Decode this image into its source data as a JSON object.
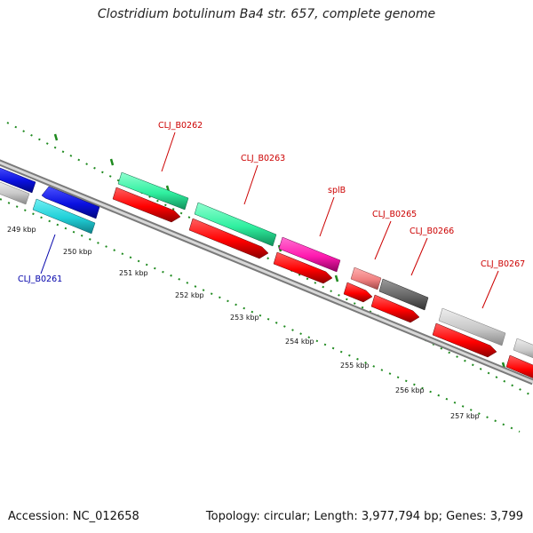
{
  "header": {
    "title": "Clostridium botulinum Ba4 str. 657, complete genome"
  },
  "footer": {
    "accession": "Accession: NC_012658",
    "stats": "Topology: circular; Length: 3,977,794 bp; Genes: 3,799"
  },
  "scale": {
    "ticks": [
      "249 kbp",
      "250 kbp",
      "251 kbp",
      "252 kbp",
      "253 kbp",
      "254 kbp",
      "255 kbp",
      "256 kbp",
      "257 kbp"
    ]
  },
  "genes": [
    {
      "name": "CLJ_B0261",
      "color": "#000080"
    },
    {
      "name": "CLJ_B0262",
      "color": "#cc0000"
    },
    {
      "name": "CLJ_B0263",
      "color": "#cc0000"
    },
    {
      "name": "splB",
      "color": "#cc0000"
    },
    {
      "name": "CLJ_B0265",
      "color": "#cc0000"
    },
    {
      "name": "CLJ_B0266",
      "color": "#cc0000"
    },
    {
      "name": "CLJ_B0267",
      "color": "#cc0000"
    }
  ],
  "colors": {
    "backbone": "#7a7a7a",
    "ticks": "#1f8a1f",
    "blue": "#0a10e0",
    "cyan": "#20d0d8",
    "green": "#30f0a0",
    "red": "#ff0000",
    "magenta": "#ff1ab0",
    "pink": "#f08080",
    "darkgray": "#666666",
    "lightgray": "#c8c8c8"
  }
}
